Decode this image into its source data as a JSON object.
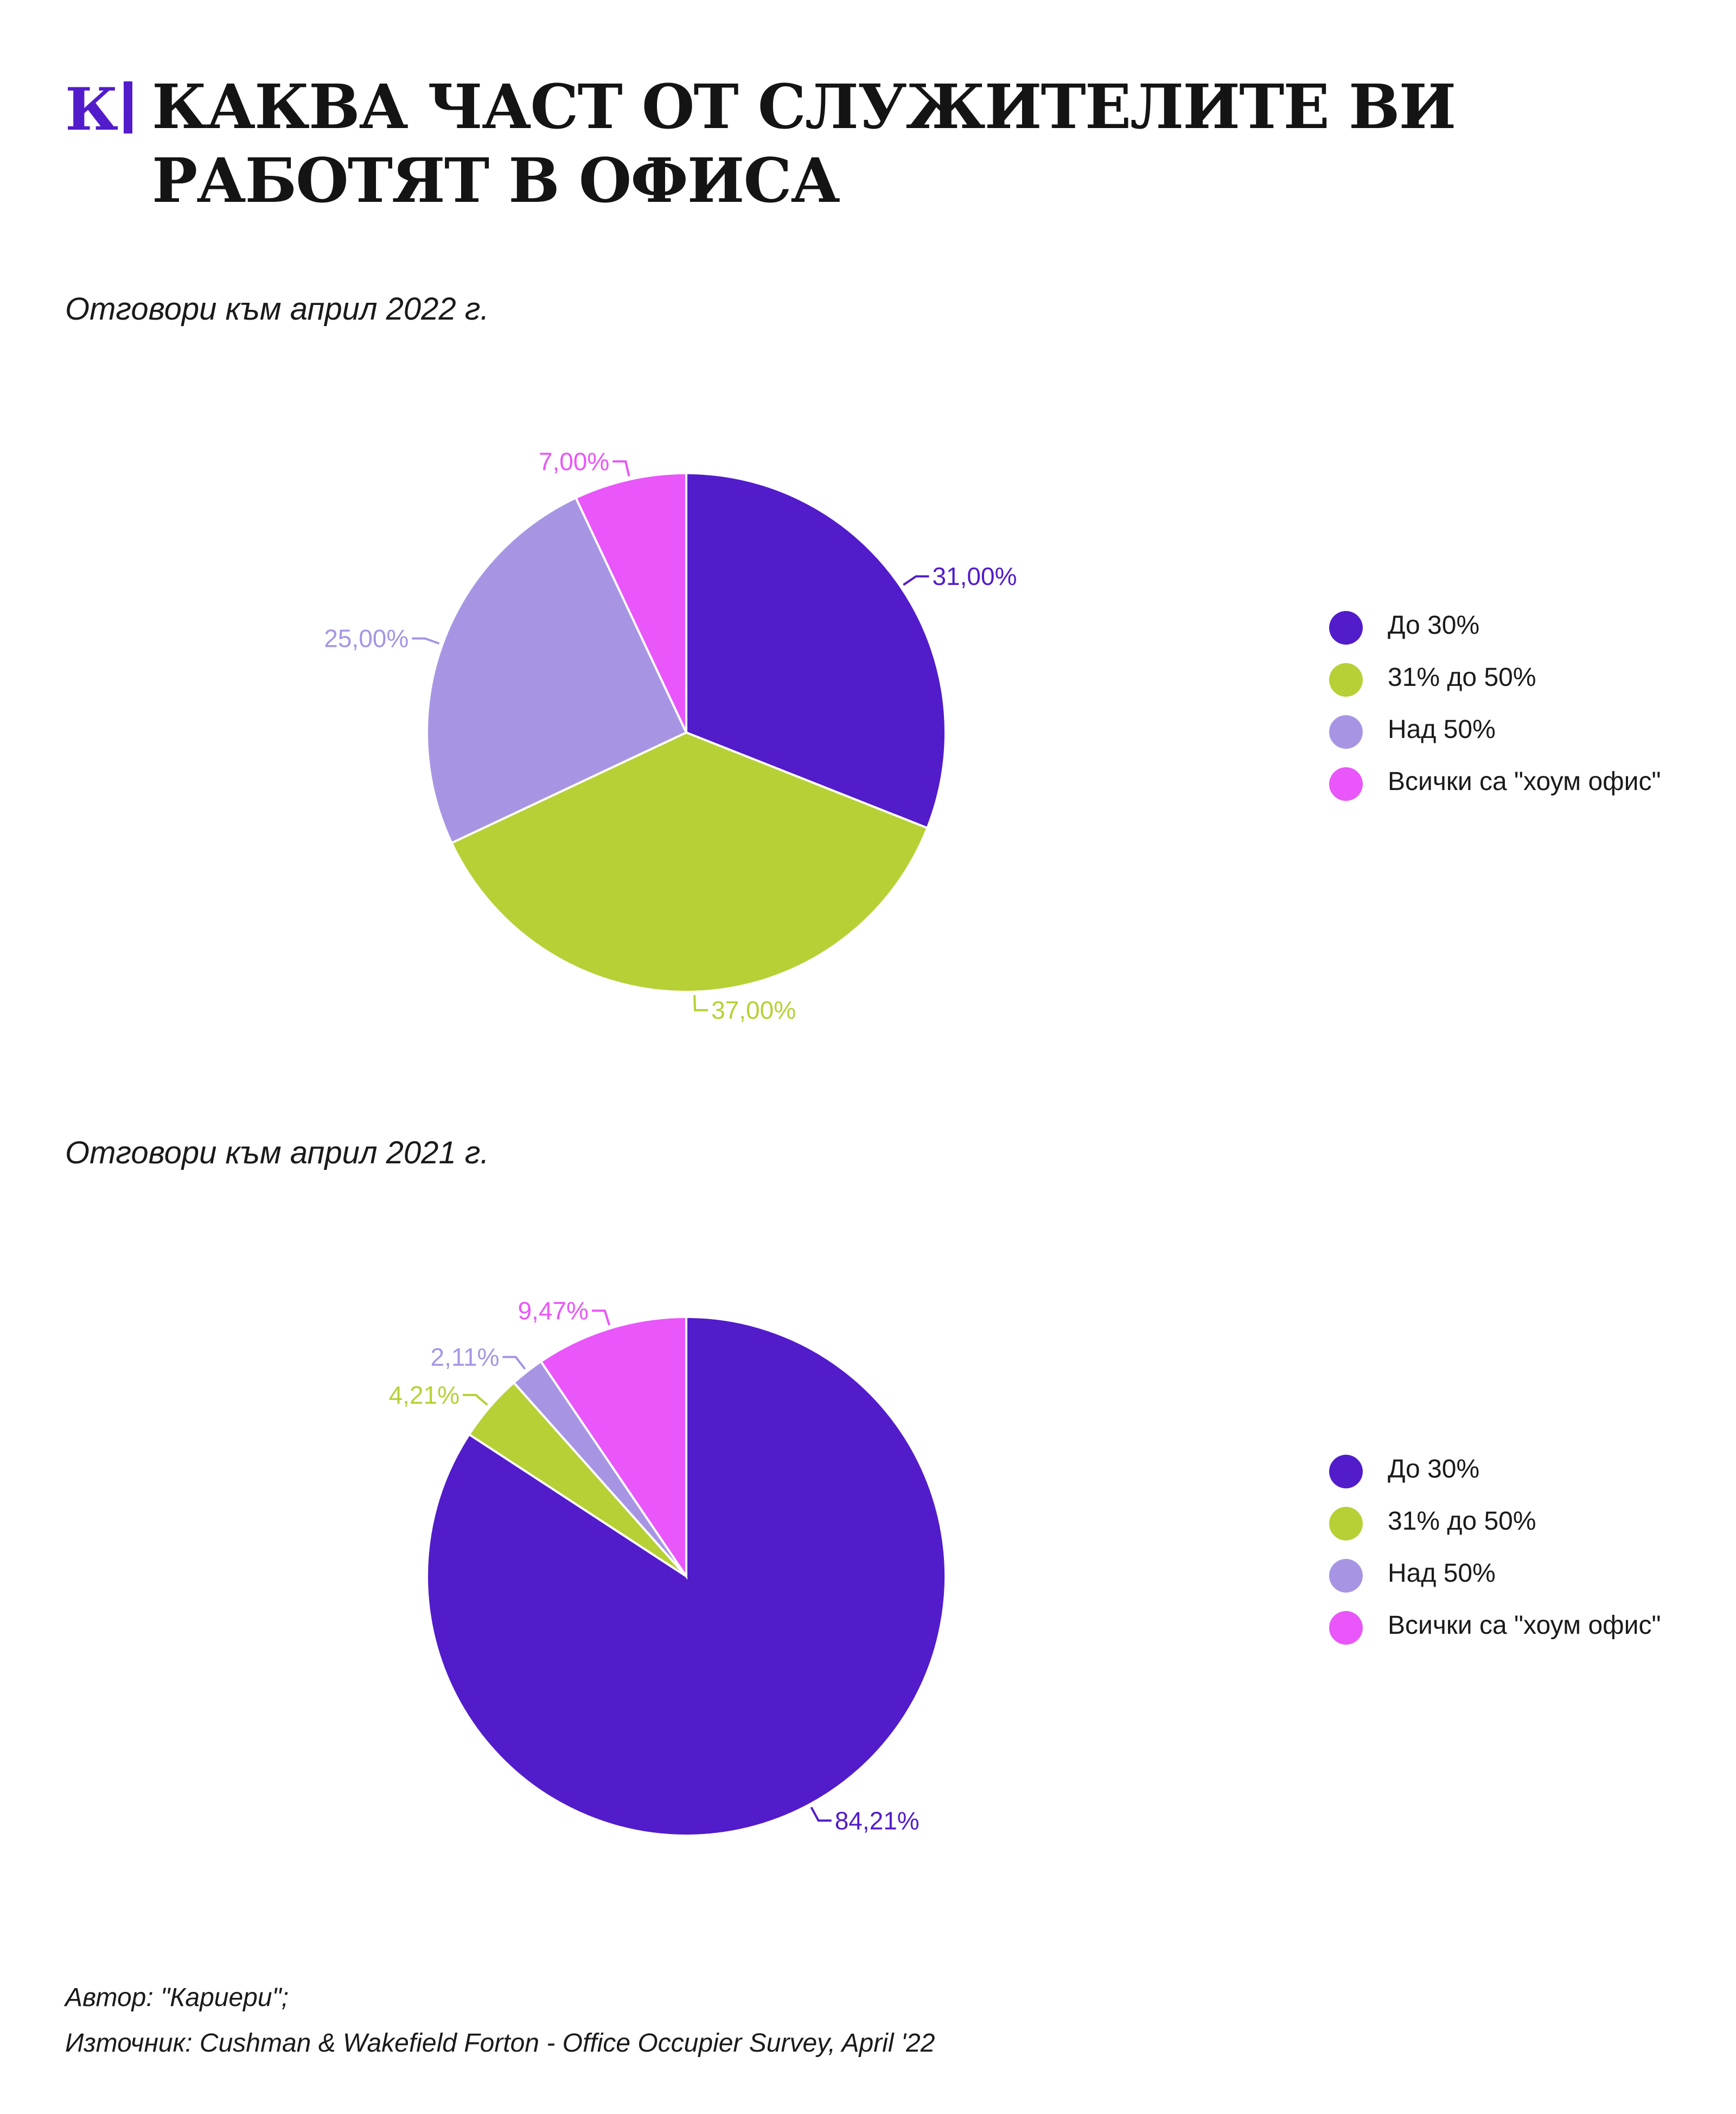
{
  "header": {
    "logo_text": "К",
    "title": "КАКВА ЧАСТ ОТ СЛУЖИТЕЛИТЕ ВИ РАБОТЯТ В ОФИСА"
  },
  "colors": {
    "do_30": "#521ccb",
    "31_do_50": "#b7d036",
    "nad_50": "#a795e4",
    "home_office": "#e956f9"
  },
  "chart_data": [
    {
      "type": "pie",
      "subtitle": "Отговори към април 2022 г.",
      "slices": [
        {
          "category": "До 30%",
          "value": 31.0,
          "label": "31,00%",
          "color": "#521ccb"
        },
        {
          "category": "31% до 50%",
          "value": 37.0,
          "label": "37,00%",
          "color": "#b7d036"
        },
        {
          "category": "Над 50%",
          "value": 25.0,
          "label": "25,00%",
          "color": "#a795e4"
        },
        {
          "category": "Всички са \"хоум офис\"",
          "value": 7.0,
          "label": "7,00%",
          "color": "#e956f9"
        }
      ],
      "legend": [
        {
          "label": "До 30%",
          "color": "#521ccb"
        },
        {
          "label": "31% до 50%",
          "color": "#b7d036"
        },
        {
          "label": "Над 50%",
          "color": "#a795e4"
        },
        {
          "label": "Всички са \"хоум офис\"",
          "color": "#e956f9"
        }
      ],
      "legend_position": "right"
    },
    {
      "type": "pie",
      "subtitle": "Отговори към април 2021 г.",
      "slices": [
        {
          "category": "До 30%",
          "value": 84.21,
          "label": "84,21%",
          "color": "#521ccb"
        },
        {
          "category": "31% до 50%",
          "value": 4.21,
          "label": "4,21%",
          "color": "#b7d036"
        },
        {
          "category": "Над 50%",
          "value": 2.11,
          "label": "2,11%",
          "color": "#a795e4"
        },
        {
          "category": "Всички са \"хоум офис\"",
          "value": 9.47,
          "label": "9,47%",
          "color": "#e956f9"
        }
      ],
      "legend": [
        {
          "label": "До 30%",
          "color": "#521ccb"
        },
        {
          "label": "31% до 50%",
          "color": "#b7d036"
        },
        {
          "label": "Над 50%",
          "color": "#a795e4"
        },
        {
          "label": "Всички са \"хоум офис\"",
          "color": "#e956f9"
        }
      ],
      "legend_position": "right"
    }
  ],
  "footer": {
    "author": "Автор: \"Кариери\";",
    "source": "Източник: Cushman & Wakefield Forton - Office Occupier Survey, April '22"
  }
}
